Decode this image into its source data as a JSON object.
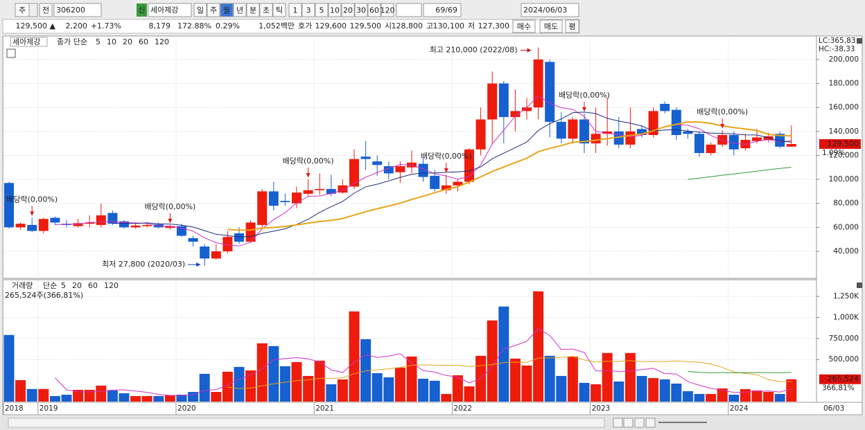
{
  "toolbar": {
    "period": "주",
    "market": "전",
    "code": "306200",
    "badge": "신",
    "name": "세아제강",
    "periods": [
      "일",
      "주",
      "월",
      "년",
      "분",
      "초",
      "틱"
    ],
    "intervals": [
      "1",
      "3",
      "5",
      "10",
      "20",
      "30",
      "60",
      "120"
    ],
    "count": "69/69",
    "date": "2024/06/03"
  },
  "quote": {
    "price": "129,500 ▲",
    "change": "2,200",
    "change_pct": "+1.73%",
    "volume": "8,179",
    "vol_ratio": "172.88%",
    "turnover_pct": "0.29%",
    "amount": "1,052백만",
    "ask_label": "호가",
    "ask": "129,600",
    "bid": "129,500",
    "open_label": "시",
    "open": "128,800",
    "high_label": "고",
    "high": "130,100",
    "low_label": "저",
    "low": "127,300",
    "buy": "매수",
    "sell": "매도",
    "avg": "평"
  },
  "chart_data": [
    {
      "type": "candlestick",
      "name": "세아제강",
      "ma_label": "종가 단순",
      "lc": "LC:365,83",
      "hc": "HC:-38,33",
      "last_label": "129,500",
      "last_pct": "1.09%",
      "end_label": "06/03",
      "up_color": "#ee1c0c",
      "down_color": "#1660d0",
      "categories": [
        "2018",
        null,
        null,
        "2019",
        null,
        null,
        null,
        null,
        null,
        null,
        null,
        null,
        null,
        null,
        null,
        "2020",
        null,
        null,
        null,
        null,
        null,
        null,
        null,
        null,
        null,
        null,
        null,
        "2021",
        null,
        null,
        null,
        null,
        null,
        null,
        null,
        null,
        null,
        null,
        null,
        "2022",
        null,
        null,
        null,
        null,
        null,
        null,
        null,
        null,
        null,
        null,
        null,
        "2023",
        null,
        null,
        null,
        null,
        null,
        null,
        null,
        null,
        null,
        null,
        null,
        "2024",
        null,
        null,
        null,
        null,
        null
      ],
      "open": [
        97000,
        60000,
        62000,
        57000,
        68000,
        63000,
        61000,
        63000,
        62000,
        72000,
        65000,
        60000,
        61000,
        62500,
        59500,
        61000,
        51000,
        44000,
        34000,
        40000,
        55000,
        48000,
        62000,
        90000,
        82000,
        80000,
        88000,
        91000,
        92000,
        89000,
        94000,
        119000,
        115000,
        111000,
        106000,
        110000,
        113000,
        103000,
        91000,
        95000,
        98000,
        125000,
        150000,
        180000,
        152000,
        157000,
        160000,
        198000,
        148000,
        134000,
        150000,
        130000,
        138000,
        140000,
        129000,
        142000,
        137000,
        163000,
        158000,
        140000,
        138000,
        122000,
        129000,
        137000,
        126000,
        132000,
        133000,
        138000,
        127300
      ],
      "high": [
        98000,
        64000,
        68000,
        68000,
        69000,
        66000,
        67000,
        70000,
        80000,
        74000,
        66000,
        63000,
        64000,
        64000,
        62000,
        63000,
        53000,
        46000,
        46000,
        57000,
        60000,
        66000,
        92000,
        98000,
        88000,
        94000,
        100000,
        105000,
        104000,
        100000,
        125000,
        132000,
        120000,
        115000,
        115000,
        124000,
        118000,
        108000,
        104000,
        100000,
        126000,
        160000,
        190000,
        182000,
        175000,
        168000,
        210000,
        200000,
        156000,
        152000,
        155000,
        160000,
        168000,
        152000,
        160000,
        145000,
        160000,
        165000,
        160000,
        142000,
        140000,
        131000,
        141000,
        140000,
        138000,
        142000,
        139000,
        140000,
        145000
      ],
      "low": [
        59000,
        58000,
        56000,
        55000,
        62000,
        60000,
        60000,
        60000,
        60000,
        62000,
        59000,
        59000,
        60000,
        59000,
        58000,
        52000,
        44000,
        27800,
        33000,
        38000,
        46000,
        47000,
        60000,
        74000,
        78000,
        76000,
        86000,
        87000,
        86000,
        88000,
        92000,
        108000,
        103000,
        100000,
        97000,
        105000,
        98000,
        90000,
        88000,
        90000,
        96000,
        120000,
        130000,
        130000,
        140000,
        150000,
        150000,
        135000,
        130000,
        130000,
        122000,
        122000,
        128000,
        126000,
        126000,
        135000,
        135000,
        155000,
        133000,
        134000,
        119000,
        120000,
        127000,
        120000,
        124000,
        130000,
        131000,
        126000,
        127000
      ],
      "close": [
        60000,
        63000,
        57000,
        67000,
        64000,
        62000,
        63500,
        64000,
        70000,
        63000,
        60000,
        61500,
        62000,
        60000,
        61000,
        53000,
        48000,
        34000,
        40000,
        52000,
        48000,
        64000,
        90000,
        78000,
        81000,
        89000,
        91000,
        92000,
        88000,
        95000,
        117000,
        117000,
        112000,
        105000,
        111000,
        114000,
        102000,
        92000,
        95000,
        98000,
        125000,
        150000,
        180000,
        152000,
        157000,
        160000,
        200000,
        148000,
        134000,
        150000,
        130000,
        138000,
        140000,
        129000,
        140000,
        137000,
        157000,
        157000,
        137000,
        138000,
        122000,
        129000,
        137000,
        125000,
        133000,
        135000,
        136000,
        127300,
        129500
      ],
      "ma": [
        {
          "period": 5,
          "color": "#d030c8"
        },
        {
          "period": 10,
          "color": "#1a2a80"
        },
        {
          "period": 20,
          "color": "#e8a418"
        },
        {
          "period": 60,
          "color": "#2e9a3a"
        },
        {
          "period": 120,
          "color": "#9a9a9a"
        }
      ],
      "ylim": [
        18600,
        219600
      ],
      "yticks": [
        {
          "value": 40000,
          "label": "40,000"
        },
        {
          "value": 60000,
          "label": "60,000"
        },
        {
          "value": 80000,
          "label": "80,000"
        },
        {
          "value": 100000,
          "label": "100,000"
        },
        {
          "value": 120000,
          "label": "120,000"
        },
        {
          "value": 140000,
          "label": "140,000"
        },
        {
          "value": 160000,
          "label": "160,000"
        },
        {
          "value": 180000,
          "label": "180,000"
        },
        {
          "value": 200000,
          "label": "200,000"
        }
      ],
      "grid": true,
      "max_note": {
        "label": "최고 210,000 (2022/08)",
        "index": 46
      },
      "min_note": {
        "label": "최저 27,800 (2020/03)",
        "index": 17
      },
      "dividends": [
        {
          "index": 2,
          "label": "배당락(0,00%)"
        },
        {
          "index": 14,
          "label": "배당락(0,00%)"
        },
        {
          "index": 26,
          "label": "배당락(0,00%)"
        },
        {
          "index": 38,
          "label": "배당락(0,00%)"
        },
        {
          "index": 50,
          "label": "배당락(0,00%)"
        },
        {
          "index": 62,
          "label": "배당락(0,00%)"
        }
      ]
    },
    {
      "type": "bar",
      "title": "거래량",
      "ma_label": "단순",
      "info": "265,524주(366,81%)",
      "last_label": "265,524",
      "last_pct": "366,81%",
      "values": [
        792000,
        255000,
        150000,
        150000,
        66000,
        82000,
        140000,
        140000,
        190000,
        132000,
        99000,
        66000,
        66000,
        66000,
        74000,
        82000,
        115000,
        330000,
        115000,
        355000,
        412000,
        371000,
        693000,
        660000,
        420000,
        470000,
        305000,
        487000,
        206000,
        264000,
        1072000,
        742000,
        338000,
        289000,
        404000,
        536000,
        272000,
        248000,
        91000,
        313000,
        181000,
        544000,
        965000,
        1130000,
        511000,
        429000,
        1311000,
        544000,
        305000,
        536000,
        223000,
        206000,
        578000,
        239000,
        578000,
        305000,
        280000,
        264000,
        214000,
        124000,
        91000,
        91000,
        157000,
        82000,
        148000,
        132000,
        115000,
        91000,
        265524
      ],
      "ma": [
        {
          "period": 5,
          "color": "#d030c8"
        },
        {
          "period": 20,
          "color": "#e8a418"
        },
        {
          "period": 60,
          "color": "#2e9a3a"
        },
        {
          "period": 120,
          "color": "#9a9a9a"
        }
      ],
      "ylim": [
        0,
        1440000
      ],
      "yticks": [
        {
          "value": 500000,
          "label": "500,000"
        },
        {
          "value": 750000,
          "label": "750,000"
        },
        {
          "value": 1000000,
          "label": "1,000K"
        },
        {
          "value": 1250000,
          "label": "1,250K"
        }
      ],
      "grid": true
    }
  ]
}
